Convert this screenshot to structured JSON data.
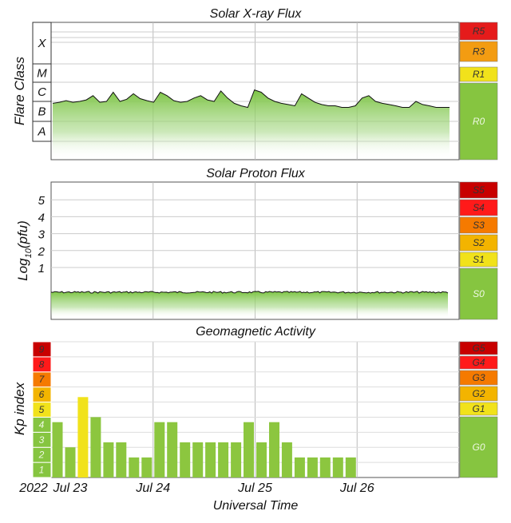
{
  "chart_data": [
    {
      "type": "area",
      "title": "Solar X-ray Flux",
      "ylabel": "Flare Class",
      "y_scale": "log",
      "flare_class_labels": [
        "X",
        "M",
        "C",
        "B",
        "A"
      ],
      "scale_labels": [
        "R5",
        "R3",
        "R1",
        "R0"
      ],
      "scale_colors": {
        "R5": "#e51b1b",
        "R3": "#f39c12",
        "R1": "#f1e21b",
        "R0": "#86c540"
      },
      "series": [
        {
          "values_flare_class_level": [
            "B8",
            "B9",
            "C1.1",
            "B9",
            "C1",
            "C1.2",
            "C2",
            "B9",
            "C1",
            "C3",
            "C1",
            "C1.3",
            "C2.5",
            "C1.4",
            "C1.1",
            "B9",
            "C3",
            "C2",
            "C1.1",
            "B9",
            "C1",
            "C1.5",
            "C2",
            "C1.2",
            "C1",
            "C3.5",
            "C1.5",
            "B8",
            "B6",
            "B5",
            "C4",
            "C3",
            "C1.5",
            "C1",
            "B8",
            "B7",
            "B6",
            "C2.5",
            "C1.5",
            "B9",
            "B7",
            "B6",
            "B6",
            "B5",
            "B5",
            "B6",
            "C1.5",
            "C2",
            "C1",
            "B8",
            "B7",
            "B6",
            "B5",
            "B5",
            "C1",
            "B7",
            "B6",
            "B5",
            "B5",
            "B5"
          ]
        }
      ]
    },
    {
      "type": "area",
      "title": "Solar Proton Flux",
      "ylabel": "Log10(pfu)",
      "ylabel_main": "Log",
      "ylabel_sub": "10",
      "ylabel_tail": "(pfu)",
      "yticks": [
        "1",
        "2",
        "3",
        "4",
        "5"
      ],
      "scale_labels": [
        "S5",
        "S4",
        "S3",
        "S2",
        "S1",
        "S0"
      ],
      "scale_colors": {
        "S5": "#c80000",
        "S4": "#ff1a1a",
        "S3": "#f57a00",
        "S2": "#f3b400",
        "S1": "#f1e21b",
        "S0": "#86c540"
      },
      "series": [
        {
          "log10_pfu_approx": -0.75
        }
      ]
    },
    {
      "type": "bar",
      "title": "Geomagnetic Activity",
      "ylabel": "Kp index",
      "xlabel": "Universal Time",
      "x_tick_labels": [
        "2022",
        "Jul 23",
        "Jul 24",
        "Jul 25",
        "Jul 26"
      ],
      "kp_levels": [
        "1",
        "2",
        "3",
        "4",
        "5",
        "6",
        "7",
        "8",
        "9"
      ],
      "scale_labels": [
        "G5",
        "G4",
        "G3",
        "G2",
        "G1",
        "G0"
      ],
      "scale_colors": {
        "G5": "#c80000",
        "G4": "#ff1a1a",
        "G3": "#f57a00",
        "G2": "#f3b400",
        "G1": "#f1e21b",
        "G0": "#86c540"
      },
      "bar_color": "#8cc63f",
      "highlight_color": "#f1e21b",
      "values": [
        3.67,
        2,
        5.33,
        4,
        2.33,
        2.33,
        1.33,
        1.33,
        3.67,
        3.67,
        2.33,
        2.33,
        2.33,
        2.33,
        2.33,
        3.67,
        2.33,
        3.67,
        2.33,
        1.33,
        1.33,
        1.33,
        1.33,
        1.33
      ],
      "ylim": [
        0,
        9
      ]
    }
  ]
}
